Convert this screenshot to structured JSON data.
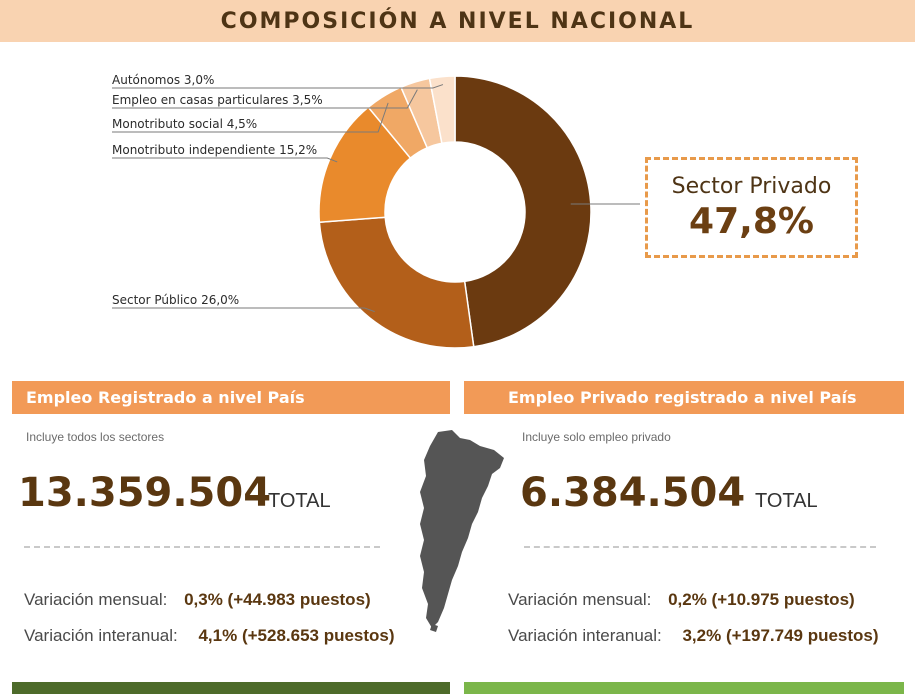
{
  "header": {
    "title": "COMPOSICIÓN A NIVEL NACIONAL"
  },
  "chart_data": {
    "type": "pie",
    "title": "COMPOSICIÓN A NIVEL NACIONAL",
    "slices": [
      {
        "name": "Sector Privado",
        "label_value": "47,8%",
        "value": 47.8,
        "color": "#6b3a10"
      },
      {
        "name": "Sector Público",
        "label_value": "26,0%",
        "value": 26.0,
        "color": "#b35f1a"
      },
      {
        "name": "Monotributo independiente",
        "label_value": "15,2%",
        "value": 15.2,
        "color": "#e98a2c"
      },
      {
        "name": "Monotributo social",
        "label_value": "4,5%",
        "value": 4.5,
        "color": "#f0a865"
      },
      {
        "name": "Empleo en casas particulares",
        "label_value": "3,5%",
        "value": 3.5,
        "color": "#f6c79e"
      },
      {
        "name": "Autónomos",
        "label_value": "3,0%",
        "value": 3.0,
        "color": "#fbe1cb"
      }
    ]
  },
  "callout": {
    "name": "Sector Privado",
    "value": "47,8%"
  },
  "left_panel": {
    "title": "Empleo Registrado a nivel País",
    "subtitle": "Incluye todos los sectores",
    "total": "13.359.504",
    "total_word": "TOTAL",
    "monthly_label": "Variación mensual:",
    "monthly_value": "0,3%  (+44.983 puestos)",
    "yearly_label": "Variación interanual:",
    "yearly_value": "4,1% (+528.653 puestos)"
  },
  "right_panel": {
    "title": "Empleo Privado registrado a nivel País",
    "subtitle": "Incluye solo empleo privado",
    "total": "6.384.504",
    "total_word": "TOTAL",
    "monthly_label": "Variación mensual:",
    "monthly_value": "0,2%  (+10.975 puestos)",
    "yearly_label": "Variación interanual:",
    "yearly_value": "3,2% (+197.749 puestos)"
  },
  "icons": {
    "map": "argentina-map-icon"
  },
  "colors": {
    "header_bg": "#f9d3b1",
    "panel_header": "#f29a57",
    "accent_dark": "#5a3710",
    "bottom_left": "#4d6b2a",
    "bottom_right": "#7bb64a"
  }
}
